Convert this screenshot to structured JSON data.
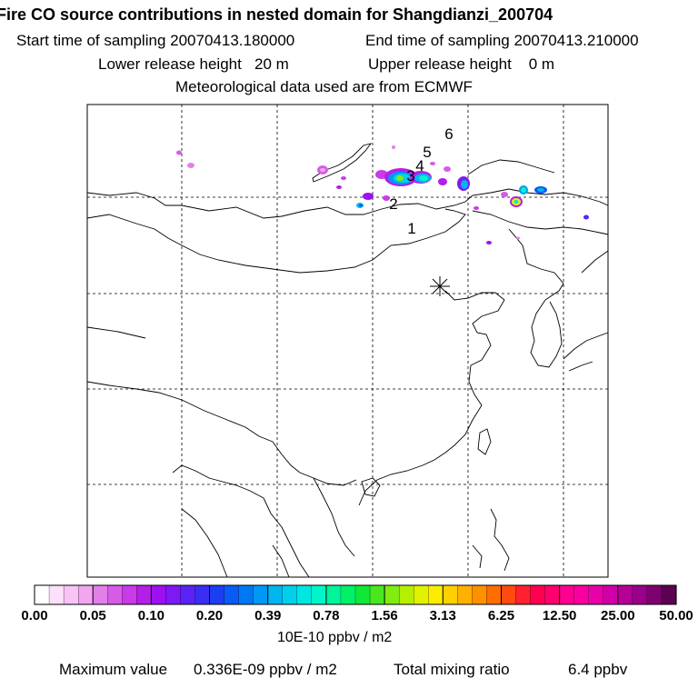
{
  "header": {
    "title": "Fire CO source contributions in nested domain for Shangdianzi_200704",
    "start_label": "Start time of sampling",
    "start_value": "20070413.180000",
    "end_label": "End time of sampling",
    "end_value": "20070413.210000",
    "lower_label": "Lower release height",
    "lower_value": "20 m",
    "upper_label": "Upper release height",
    "upper_value": "0 m",
    "met_text": "Meteorological data used are from ECMWF"
  },
  "map": {
    "receptor_marker": "asterisk-icon",
    "source_labels": [
      "1",
      "2",
      "3",
      "4",
      "5",
      "6"
    ]
  },
  "colorbar": {
    "tick_labels": [
      "0.00",
      "0.05",
      "0.10",
      "0.20",
      "0.39",
      "0.78",
      "1.56",
      "3.13",
      "6.25",
      "12.50",
      "25.00",
      "50.00"
    ],
    "colors": [
      "#ffffff",
      "#fde0fb",
      "#f8c4f6",
      "#f2a6f0",
      "#e27fe9",
      "#d65ce7",
      "#c93ae8",
      "#b41ee8",
      "#9d10f0",
      "#7e18f4",
      "#5b22f6",
      "#3a2ef4",
      "#1b3ef2",
      "#0a5af5",
      "#0078f4",
      "#0098f4",
      "#00b6f0",
      "#00d0ea",
      "#00e6e0",
      "#00f6c8",
      "#00f59a",
      "#00f068",
      "#10e838",
      "#48e820",
      "#80ec10",
      "#b4f000",
      "#e0f200",
      "#fcec00",
      "#ffd000",
      "#ffb000",
      "#ff9000",
      "#ff6c00",
      "#ff4a10",
      "#ff2030",
      "#ff0050",
      "#ff0070",
      "#ff0090",
      "#f800a0",
      "#e800a8",
      "#d000a8",
      "#b60098",
      "#9a0088",
      "#7e0070",
      "#5c0050"
    ],
    "unit_label": "10E-10 ppbv / m2"
  },
  "footer": {
    "max_label": "Maximum value",
    "max_value": "0.336E-09 ppbv / m2",
    "total_label": "Total mixing ratio",
    "total_value": "6.4 ppbv"
  }
}
